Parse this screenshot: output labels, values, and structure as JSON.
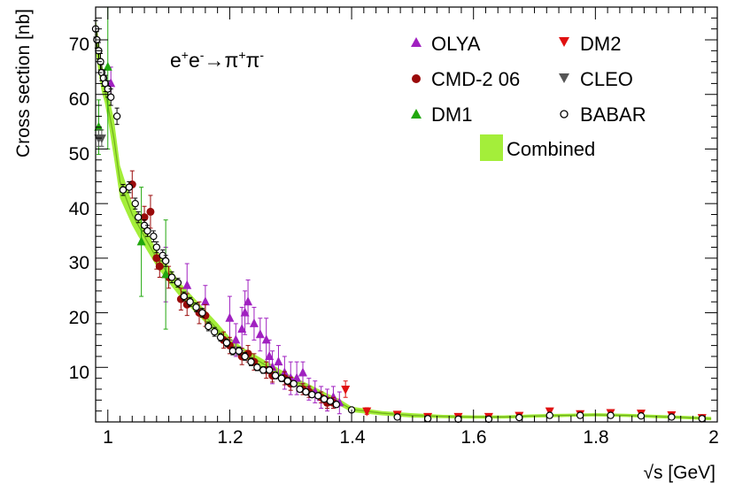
{
  "chart_data": {
    "type": "scatter",
    "title": "",
    "process": {
      "base1": "e",
      "sup1": "+",
      "base2": "e",
      "sup2": "-",
      "arrow": "→",
      "base3": "π",
      "sup3": "+",
      "base4": "π",
      "sup4": "-"
    },
    "xlabel": "√s   [GeV]",
    "ylabel": "Cross section   [nb]",
    "xlim": [
      0.98,
      2.0
    ],
    "ylim": [
      0,
      76
    ],
    "x_ticks": [
      {
        "value": 1.0,
        "label": "1"
      },
      {
        "value": 1.2,
        "label": "1.2"
      },
      {
        "value": 1.4,
        "label": "1.4"
      },
      {
        "value": 1.6,
        "label": "1.6"
      },
      {
        "value": 1.8,
        "label": "1.8"
      },
      {
        "value": 2.0,
        "label": "2"
      }
    ],
    "y_ticks": [
      {
        "value": 10,
        "label": "10"
      },
      {
        "value": 20,
        "label": "20"
      },
      {
        "value": 30,
        "label": "30"
      },
      {
        "value": 40,
        "label": "40"
      },
      {
        "value": 50,
        "label": "50"
      },
      {
        "value": 60,
        "label": "60"
      },
      {
        "value": 70,
        "label": "70"
      }
    ],
    "legend_position": "top-right",
    "band": {
      "name": "Combined",
      "color": "#a4ee3a",
      "x": [
        0.98,
        0.985,
        0.99,
        0.995,
        1.0,
        1.01,
        1.02,
        1.03,
        1.04,
        1.05,
        1.06,
        1.08,
        1.1,
        1.12,
        1.15,
        1.18,
        1.2,
        1.22,
        1.25,
        1.28,
        1.3,
        1.33,
        1.36,
        1.38,
        1.4,
        1.45,
        1.5,
        1.55,
        1.6,
        1.65,
        1.7,
        1.75,
        1.8,
        1.85,
        1.9,
        1.95,
        1.99
      ],
      "y": [
        71,
        67,
        63,
        61,
        58,
        52,
        44,
        41,
        38,
        36,
        34,
        30,
        27,
        24,
        20.5,
        17,
        14.5,
        12.8,
        11,
        9,
        7.8,
        6.2,
        4.6,
        3.6,
        2.3,
        1.6,
        1.2,
        1.0,
        0.9,
        0.9,
        1.1,
        1.2,
        1.3,
        1.2,
        1.0,
        0.8,
        0.6
      ],
      "width": [
        3,
        3,
        2.5,
        2.5,
        2.5,
        3.5,
        3,
        2.5,
        2,
        2,
        1.8,
        1.5,
        1.5,
        1.3,
        1.2,
        1.1,
        1.0,
        0.9,
        0.8,
        0.8,
        0.7,
        0.7,
        0.6,
        0.6,
        0.5,
        0.4,
        0.4,
        0.3,
        0.3,
        0.3,
        0.3,
        0.3,
        0.3,
        0.3,
        0.3,
        0.3,
        0.3
      ]
    },
    "series": [
      {
        "name": "OLYA",
        "marker": "triangle-up",
        "color": "#a020c0",
        "fill": "#a020c0",
        "points": [
          [
            1.005,
            62,
            3
          ],
          [
            1.095,
            27,
            5
          ],
          [
            1.13,
            25,
            4
          ],
          [
            1.16,
            22,
            3
          ],
          [
            1.2,
            19,
            4
          ],
          [
            1.21,
            15,
            3
          ],
          [
            1.22,
            17,
            4
          ],
          [
            1.225,
            20,
            4
          ],
          [
            1.23,
            22,
            4
          ],
          [
            1.24,
            18,
            3
          ],
          [
            1.25,
            16,
            3
          ],
          [
            1.26,
            15,
            4
          ],
          [
            1.265,
            12,
            3
          ],
          [
            1.27,
            10,
            3
          ],
          [
            1.28,
            11,
            3
          ],
          [
            1.29,
            9,
            3
          ],
          [
            1.3,
            8,
            3
          ],
          [
            1.31,
            8,
            3
          ],
          [
            1.32,
            9,
            2
          ],
          [
            1.33,
            6,
            2
          ],
          [
            1.34,
            5.5,
            2
          ],
          [
            1.35,
            4.5,
            2
          ],
          [
            1.36,
            4,
            2
          ],
          [
            1.37,
            4.5,
            2
          ],
          [
            1.38,
            3.5,
            2
          ]
        ]
      },
      {
        "name": "CMD-2 06",
        "marker": "circle",
        "color": "#9a0a0a",
        "fill": "#9a0a0a",
        "points": [
          [
            1.04,
            43.5,
            2.5
          ],
          [
            1.06,
            37.5,
            2
          ],
          [
            1.07,
            38.5,
            3
          ],
          [
            1.08,
            30,
            2
          ],
          [
            1.085,
            28.5,
            2
          ],
          [
            1.1,
            26.5,
            2
          ],
          [
            1.12,
            22.5,
            2
          ],
          [
            1.13,
            21.5,
            2
          ],
          [
            1.15,
            20,
            2
          ],
          [
            1.16,
            19.5,
            2
          ],
          [
            1.19,
            15,
            1.5
          ],
          [
            1.2,
            14,
            1.5
          ],
          [
            1.22,
            12,
            1.5
          ],
          [
            1.23,
            12.5,
            1.5
          ],
          [
            1.24,
            11,
            1.5
          ],
          [
            1.26,
            9.5,
            1.5
          ],
          [
            1.27,
            8.5,
            1.2
          ],
          [
            1.29,
            8,
            1.2
          ],
          [
            1.3,
            7,
            1.2
          ],
          [
            1.32,
            6,
            1
          ],
          [
            1.33,
            5.5,
            1
          ],
          [
            1.35,
            4.5,
            1
          ],
          [
            1.36,
            3.5,
            1
          ],
          [
            1.37,
            3.5,
            1
          ]
        ]
      },
      {
        "name": "DM1",
        "marker": "triangle-up",
        "color": "#22a80e",
        "fill": "#22a80e",
        "points": [
          [
            0.985,
            54,
            5
          ],
          [
            1.0,
            65,
            15
          ],
          [
            1.055,
            33,
            10
          ],
          [
            1.095,
            27,
            10
          ]
        ]
      },
      {
        "name": "DM2",
        "marker": "triangle-down",
        "color": "#e01010",
        "fill": "#e01010",
        "points": [
          [
            1.39,
            6,
            1.5
          ],
          [
            1.425,
            2,
            0.6
          ],
          [
            1.475,
            1.4,
            0.5
          ],
          [
            1.525,
            1.0,
            0.4
          ],
          [
            1.575,
            1.0,
            0.4
          ],
          [
            1.625,
            1.0,
            0.4
          ],
          [
            1.675,
            1.2,
            0.4
          ],
          [
            1.725,
            2.0,
            0.5
          ],
          [
            1.775,
            1.5,
            0.4
          ],
          [
            1.825,
            1.7,
            0.4
          ],
          [
            1.875,
            1.6,
            0.4
          ],
          [
            1.925,
            1.3,
            0.4
          ],
          [
            1.975,
            0.8,
            0.3
          ]
        ]
      },
      {
        "name": "CLEO",
        "marker": "triangle-down",
        "color": "#555555",
        "fill": "#555555",
        "points": [
          [
            0.985,
            52,
            1.5
          ],
          [
            0.99,
            52,
            1.5
          ]
        ]
      },
      {
        "name": "BABAR",
        "marker": "circle-open",
        "color": "#000000",
        "fill": "#ffffff",
        "points": [
          [
            0.98,
            72,
            1.5
          ],
          [
            0.982,
            70,
            1.5
          ],
          [
            0.985,
            68,
            1.5
          ],
          [
            0.988,
            66,
            1.5
          ],
          [
            0.99,
            64,
            1.5
          ],
          [
            0.993,
            63,
            1.5
          ],
          [
            0.996,
            62,
            1.5
          ],
          [
            1.0,
            61,
            1.5
          ],
          [
            1.005,
            59.5,
            1.5
          ],
          [
            1.015,
            56,
            1.5
          ],
          [
            1.025,
            42.5,
            1
          ],
          [
            1.035,
            43,
            1
          ],
          [
            1.045,
            40,
            1
          ],
          [
            1.05,
            37.5,
            1
          ],
          [
            1.06,
            36,
            1
          ],
          [
            1.065,
            35,
            1
          ],
          [
            1.075,
            34,
            1
          ],
          [
            1.08,
            32,
            1
          ],
          [
            1.09,
            30.5,
            1
          ],
          [
            1.095,
            29.5,
            1
          ],
          [
            1.105,
            26.5,
            1
          ],
          [
            1.115,
            25.5,
            0.8
          ],
          [
            1.125,
            23,
            0.8
          ],
          [
            1.135,
            22,
            0.8
          ],
          [
            1.145,
            21,
            0.8
          ],
          [
            1.155,
            20,
            0.8
          ],
          [
            1.165,
            17.5,
            0.8
          ],
          [
            1.175,
            16.5,
            0.8
          ],
          [
            1.185,
            15.5,
            0.7
          ],
          [
            1.195,
            14.5,
            0.7
          ],
          [
            1.205,
            13,
            0.7
          ],
          [
            1.215,
            13,
            0.7
          ],
          [
            1.225,
            12,
            0.7
          ],
          [
            1.235,
            11,
            0.7
          ],
          [
            1.245,
            10,
            0.6
          ],
          [
            1.255,
            9.5,
            0.6
          ],
          [
            1.265,
            9.5,
            0.6
          ],
          [
            1.275,
            8.5,
            0.6
          ],
          [
            1.285,
            8,
            0.6
          ],
          [
            1.295,
            7.5,
            0.6
          ],
          [
            1.305,
            7,
            0.5
          ],
          [
            1.315,
            6,
            0.5
          ],
          [
            1.325,
            5.5,
            0.5
          ],
          [
            1.335,
            5,
            0.5
          ],
          [
            1.345,
            4.8,
            0.5
          ],
          [
            1.355,
            4.2,
            0.5
          ],
          [
            1.365,
            3.8,
            0.4
          ],
          [
            1.375,
            3.2,
            0.4
          ],
          [
            1.4,
            2.2,
            0.3
          ],
          [
            1.475,
            0.9,
            0.2
          ],
          [
            1.525,
            0.6,
            0.2
          ],
          [
            1.575,
            0.5,
            0.2
          ],
          [
            1.625,
            0.5,
            0.2
          ],
          [
            1.675,
            0.8,
            0.2
          ],
          [
            1.725,
            1.2,
            0.2
          ],
          [
            1.775,
            1.2,
            0.2
          ],
          [
            1.825,
            1.2,
            0.2
          ],
          [
            1.875,
            1.1,
            0.2
          ],
          [
            1.925,
            0.9,
            0.2
          ],
          [
            1.975,
            0.6,
            0.2
          ]
        ]
      }
    ]
  }
}
